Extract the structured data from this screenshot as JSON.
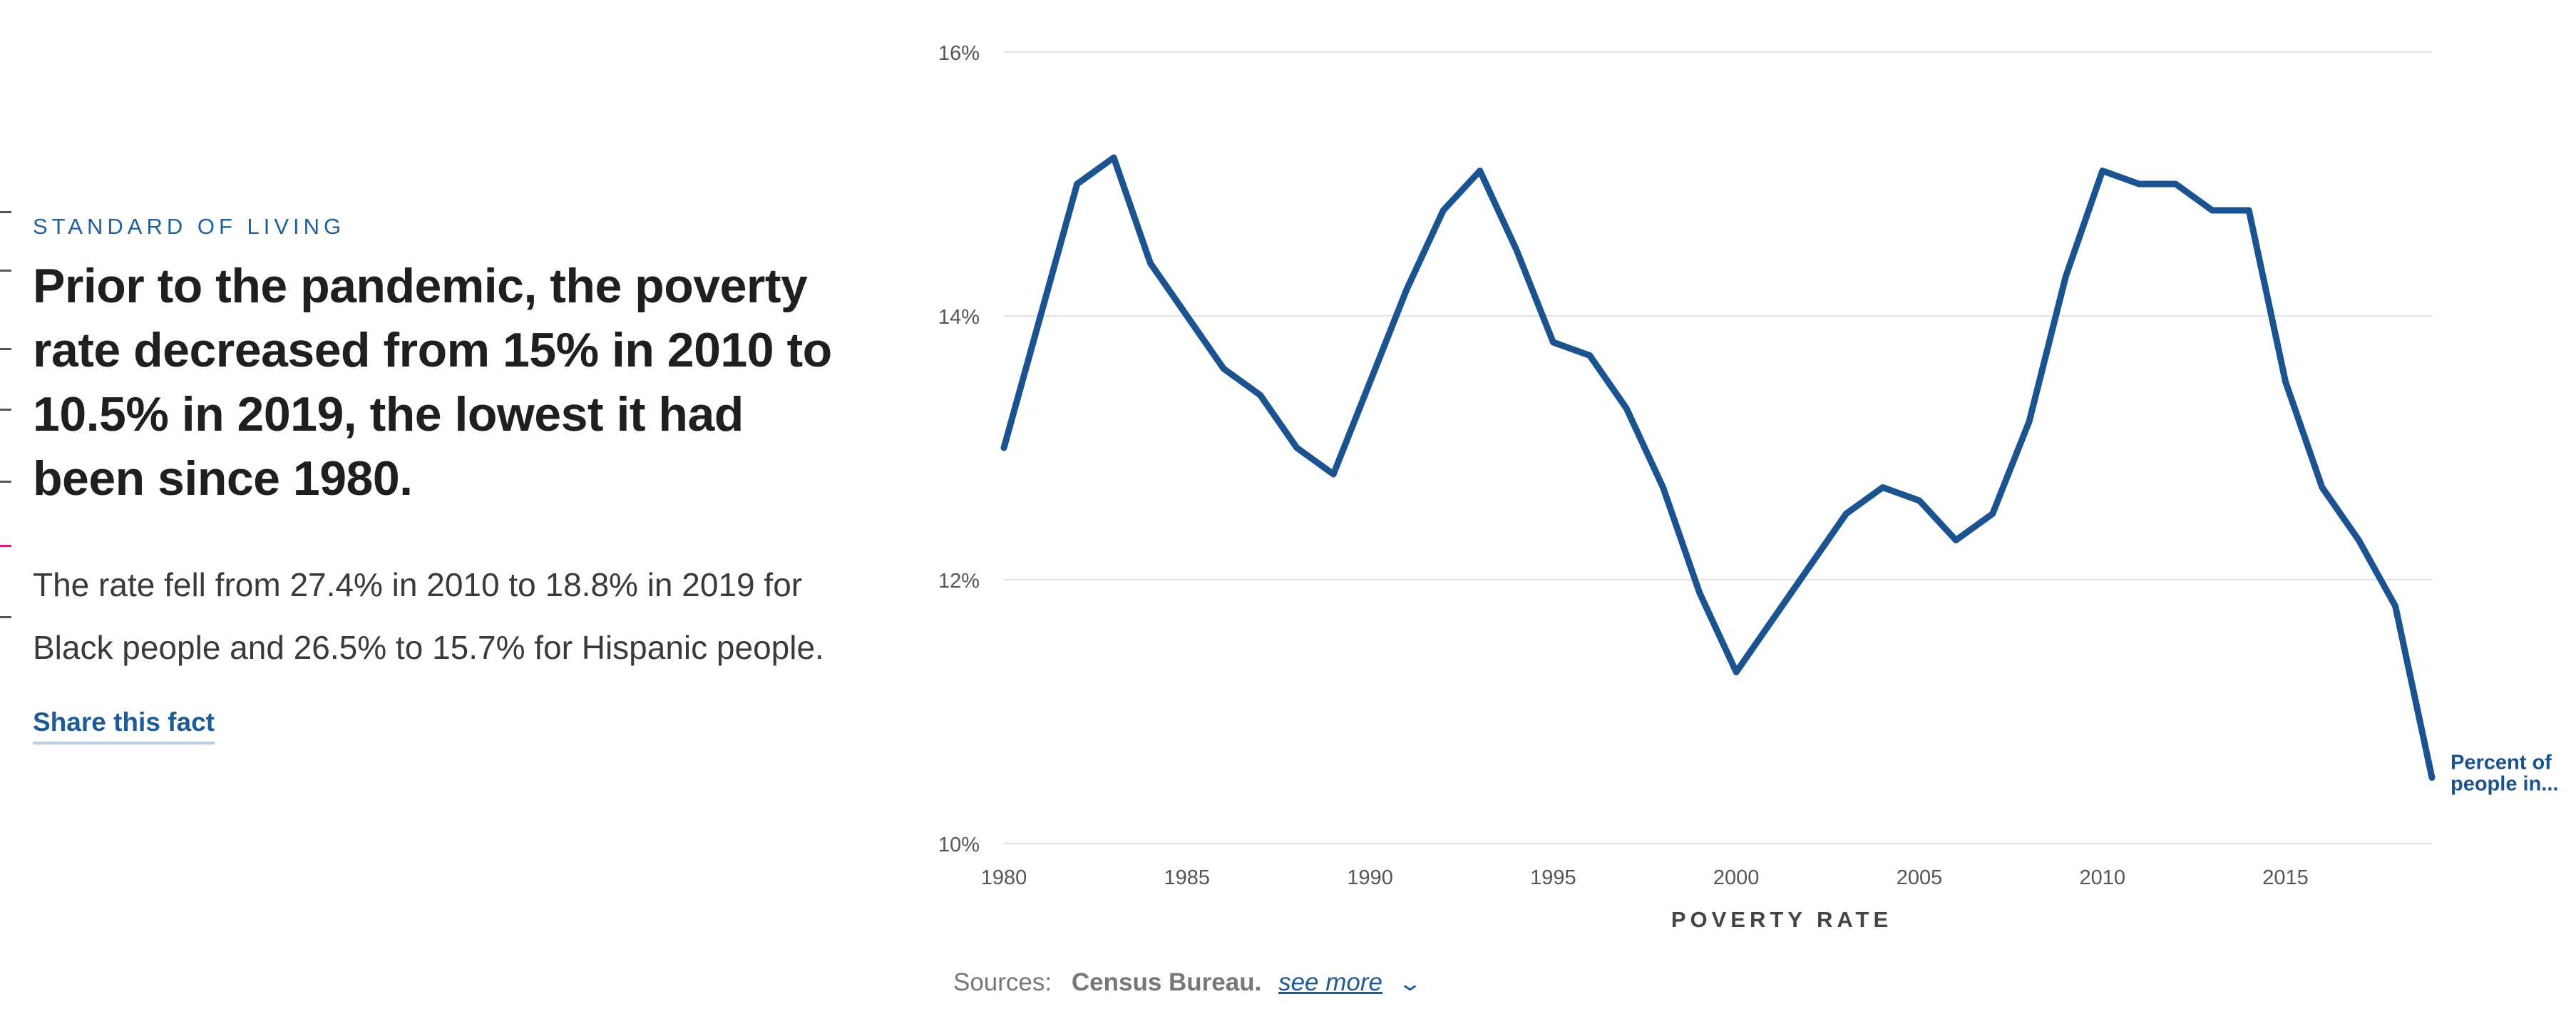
{
  "fact": {
    "category": "STANDARD OF LIVING",
    "headline": "Prior to the pandemic, the poverty rate decreased from 15% in 2010 to 10.5% in 2019, the lowest it had been since 1980.",
    "body": "The rate fell from 27.4% in 2010 to 18.8% in 2019 for Black people and 26.5% to 15.7% for Hispanic people.",
    "share_label": "Share this fact"
  },
  "sources": {
    "label": "Sources:",
    "name": "Census Bureau.",
    "see_more": "see more",
    "chevron_icon": "chevron-down-icon"
  },
  "colors": {
    "line": "#1b5391",
    "accent": "#d2207c",
    "grid": "#e3e3e3",
    "eyebrow": "#1e5fa0"
  },
  "chart_data": {
    "type": "line",
    "title": "POVERTY RATE",
    "xlabel": "",
    "ylabel": "",
    "x": [
      1980,
      1981,
      1982,
      1983,
      1984,
      1985,
      1986,
      1987,
      1988,
      1989,
      1990,
      1991,
      1992,
      1993,
      1994,
      1995,
      1996,
      1997,
      1998,
      1999,
      2000,
      2001,
      2002,
      2003,
      2004,
      2005,
      2006,
      2007,
      2008,
      2009,
      2010,
      2011,
      2012,
      2013,
      2014,
      2015,
      2016,
      2017,
      2018,
      2019
    ],
    "series": [
      {
        "name": "Percent of people in...",
        "values": [
          13.0,
          14.0,
          15.0,
          15.2,
          14.4,
          14.0,
          13.6,
          13.4,
          13.0,
          12.8,
          13.5,
          14.2,
          14.8,
          15.1,
          14.5,
          13.8,
          13.7,
          13.3,
          12.7,
          11.9,
          11.3,
          11.7,
          12.1,
          12.5,
          12.7,
          12.6,
          12.3,
          12.5,
          13.2,
          14.3,
          15.1,
          15.0,
          15.0,
          14.8,
          14.8,
          13.5,
          12.7,
          12.3,
          11.8,
          10.5
        ]
      }
    ],
    "xlim": [
      1980,
      2019
    ],
    "ylim": [
      10,
      16
    ],
    "xticks": [
      1980,
      1985,
      1990,
      1995,
      2000,
      2005,
      2010,
      2015
    ],
    "yticks": [
      10,
      12,
      14,
      16
    ],
    "ytick_labels": [
      "10%",
      "12%",
      "14%",
      "16%"
    ],
    "end_label_lines": [
      "Percent of",
      "people in..."
    ],
    "grid": "horizontal",
    "legend": "none"
  }
}
